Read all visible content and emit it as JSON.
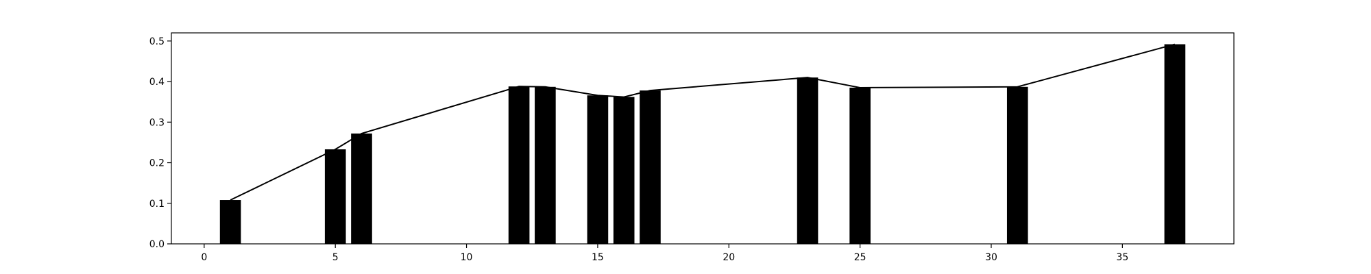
{
  "chart_data": {
    "type": "bar",
    "title": "",
    "xlabel": "",
    "ylabel": "",
    "xlim": [
      -1.25,
      39.25
    ],
    "ylim": [
      0,
      0.52
    ],
    "grid": false,
    "x_ticks": [
      0,
      5,
      10,
      15,
      20,
      25,
      30,
      35
    ],
    "x_tick_labels": [
      "0",
      "5",
      "10",
      "15",
      "20",
      "25",
      "30",
      "35"
    ],
    "y_ticks": [
      0.0,
      0.1,
      0.2,
      0.3,
      0.4,
      0.5
    ],
    "y_tick_labels": [
      "0.0",
      "0.1",
      "0.2",
      "0.3",
      "0.4",
      "0.5"
    ],
    "bar_width": 0.8,
    "bar_color": "#000000",
    "line_color": "#000000",
    "x": [
      1,
      5,
      6,
      12,
      13,
      15,
      16,
      17,
      23,
      25,
      31,
      37
    ],
    "values": [
      0.108,
      0.233,
      0.272,
      0.388,
      0.387,
      0.366,
      0.362,
      0.378,
      0.41,
      0.385,
      0.387,
      0.492
    ]
  }
}
